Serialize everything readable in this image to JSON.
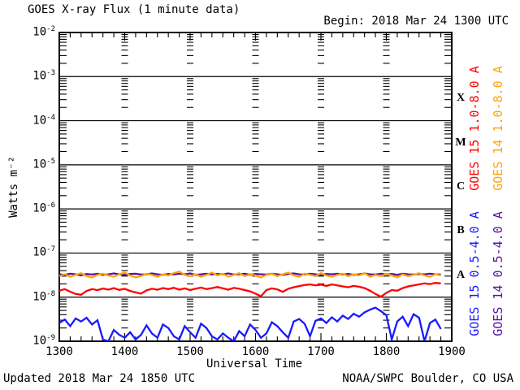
{
  "header": {
    "title": "GOES X-ray Flux (1 minute data)",
    "begin": "Begin: 2018 Mar 24 1300 UTC"
  },
  "footer": {
    "updated": "Updated 2018 Mar 24 1850 UTC",
    "credit": "NOAA/SWPC Boulder, CO USA"
  },
  "chart_data": {
    "type": "line",
    "title": "GOES X-ray Flux (1 minute data)",
    "xlabel": "Universal Time",
    "ylabel": "Watts m⁻²",
    "y_scale": "log",
    "ylim": [
      1e-09,
      0.01
    ],
    "y_tick_exponents": [
      -2,
      -3,
      -4,
      -5,
      -6,
      -7,
      -8,
      -9
    ],
    "x_axis": {
      "tick_labels": [
        "1300",
        "1400",
        "1500",
        "1600",
        "1700",
        "1800",
        "1900"
      ],
      "span_minutes": 360,
      "minor_tick_minutes": 10,
      "hour_gridline_tick_columns": true
    },
    "flare_classes": [
      {
        "label": "X",
        "band_exponents": [
          -4,
          -3
        ]
      },
      {
        "label": "M",
        "band_exponents": [
          -5,
          -4
        ]
      },
      {
        "label": "C",
        "band_exponents": [
          -6,
          -5
        ]
      },
      {
        "label": "B",
        "band_exponents": [
          -7,
          -6
        ]
      },
      {
        "label": "A",
        "band_exponents": [
          -8,
          -7
        ]
      }
    ],
    "x_start_minutes_after_1300": 0,
    "x_step_minutes": 5,
    "series": [
      {
        "label": "GOES 14 0.5-4.0 A",
        "satellite": "GOES 14",
        "channel": "0.5-4.0 A",
        "color": "#5c0da6",
        "scale": 1e-08,
        "legend_column": "outer",
        "legend_block": "short",
        "values": [
          3.3,
          3.2,
          3.4,
          3.3,
          3.1,
          3.35,
          3.25,
          3.4,
          3.2,
          3.3,
          3.45,
          3.3,
          3.2,
          3.35,
          3.4,
          3.25,
          3.3,
          3.45,
          3.3,
          3.2,
          3.35,
          3.25,
          3.4,
          3.3,
          3.45,
          3.2,
          3.3,
          3.4,
          3.25,
          3.35,
          3.3,
          3.45,
          3.25,
          3.3,
          3.4,
          3.2,
          3.35,
          3.3,
          3.25,
          3.4,
          3.3,
          3.2,
          3.35,
          3.45,
          3.3,
          3.25,
          3.4,
          3.3,
          3.2,
          3.35,
          3.3,
          3.4,
          3.25,
          3.35,
          3.2,
          3.3,
          3.45,
          3.3,
          3.25,
          3.4,
          3.3,
          3.35,
          3.2,
          3.4,
          3.3,
          3.25,
          3.35,
          3.3,
          3.4,
          3.3,
          3.25
        ]
      },
      {
        "label": "GOES 14 1.0-8.0 A",
        "satellite": "GOES 14",
        "channel": "1.0-8.0 A",
        "color": "#ffa500",
        "scale": 1e-08,
        "legend_column": "outer",
        "legend_block": "long",
        "values": [
          3.0,
          3.3,
          2.9,
          3.2,
          3.5,
          3.0,
          2.8,
          3.2,
          3.4,
          3.1,
          2.9,
          3.3,
          3.6,
          3.1,
          2.8,
          3.0,
          3.4,
          3.2,
          2.9,
          3.3,
          3.1,
          3.5,
          3.8,
          3.2,
          3.0,
          3.3,
          2.9,
          3.2,
          3.6,
          3.1,
          3.4,
          2.9,
          3.2,
          3.5,
          3.0,
          3.3,
          3.1,
          2.8,
          3.2,
          3.4,
          3.0,
          3.3,
          3.6,
          3.1,
          2.9,
          3.4,
          3.2,
          3.0,
          3.5,
          3.1,
          2.9,
          3.2,
          3.4,
          3.0,
          3.3,
          3.1,
          3.5,
          2.9,
          3.2,
          3.0,
          3.4,
          3.1,
          2.8,
          3.3,
          3.0,
          3.2,
          3.5,
          3.1,
          2.9,
          3.3,
          3.1
        ]
      },
      {
        "label": "GOES 15 1.0-8.0 A",
        "satellite": "GOES 15",
        "channel": "1.0-8.0 A",
        "color": "#ff0000",
        "scale": 1e-08,
        "legend_column": "inner",
        "legend_block": "long",
        "values": [
          1.4,
          1.52,
          1.33,
          1.18,
          1.13,
          1.38,
          1.52,
          1.44,
          1.57,
          1.48,
          1.6,
          1.46,
          1.55,
          1.38,
          1.28,
          1.2,
          1.42,
          1.55,
          1.47,
          1.6,
          1.52,
          1.63,
          1.48,
          1.58,
          1.45,
          1.55,
          1.65,
          1.52,
          1.6,
          1.7,
          1.58,
          1.48,
          1.62,
          1.55,
          1.45,
          1.35,
          1.2,
          1.05,
          1.45,
          1.58,
          1.5,
          1.32,
          1.55,
          1.68,
          1.78,
          1.88,
          1.95,
          1.85,
          1.92,
          1.8,
          1.95,
          1.85,
          1.75,
          1.68,
          1.8,
          1.72,
          1.6,
          1.4,
          1.18,
          1.02,
          1.25,
          1.45,
          1.4,
          1.6,
          1.75,
          1.85,
          1.95,
          2.05,
          1.98,
          2.1,
          2.05
        ]
      },
      {
        "label": "GOES 15 0.5-4.0 A",
        "satellite": "GOES 15",
        "channel": "0.5-4.0 A",
        "color": "#1a1aff",
        "scale": 1e-09,
        "legend_column": "inner",
        "legend_block": "short",
        "values": [
          2.6,
          3.1,
          2.2,
          3.3,
          2.8,
          3.4,
          2.4,
          3.0,
          1.1,
          1.0,
          1.8,
          1.4,
          1.2,
          1.6,
          1.1,
          1.4,
          2.3,
          1.5,
          1.2,
          2.4,
          2.0,
          1.3,
          1.1,
          2.2,
          1.6,
          1.2,
          2.5,
          2.0,
          1.3,
          1.1,
          1.5,
          1.2,
          1.0,
          1.7,
          1.3,
          2.4,
          1.8,
          1.2,
          1.5,
          2.7,
          2.2,
          1.6,
          1.2,
          2.8,
          3.2,
          2.5,
          1.3,
          2.9,
          3.3,
          2.6,
          3.5,
          2.8,
          3.8,
          3.2,
          4.2,
          3.6,
          4.5,
          5.2,
          5.8,
          4.8,
          3.9,
          1.1,
          2.8,
          3.6,
          2.2,
          4.1,
          3.4,
          1.0,
          2.6,
          3.1,
          1.9
        ]
      }
    ],
    "legend_position": "right-rotated",
    "grid": "solid horizontal decade lines; log-minor tick columns at each hour"
  }
}
